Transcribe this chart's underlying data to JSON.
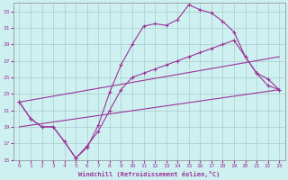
{
  "xlabel": "Windchill (Refroidissement éolien,°C)",
  "bg_color": "#cff0f0",
  "grid_color": "#aacccc",
  "line_color": "#993399",
  "xlim": [
    -0.5,
    23.5
  ],
  "ylim": [
    15,
    34
  ],
  "yticks": [
    15,
    17,
    19,
    21,
    23,
    25,
    27,
    29,
    31,
    33
  ],
  "xticks": [
    0,
    1,
    2,
    3,
    4,
    5,
    6,
    7,
    8,
    9,
    10,
    11,
    12,
    13,
    14,
    15,
    16,
    17,
    18,
    19,
    20,
    21,
    22,
    23
  ],
  "series": [
    {
      "x": [
        0,
        1,
        2,
        3,
        4,
        5,
        6,
        7,
        8,
        9,
        10,
        11,
        12,
        13,
        14,
        15,
        16,
        17,
        18,
        19,
        20,
        21,
        22,
        23
      ],
      "y": [
        22,
        20,
        19,
        19,
        17.2,
        15.2,
        16.5,
        19.2,
        23.2,
        26.5,
        29.0,
        31.2,
        31.5,
        31.3,
        32.0,
        33.8,
        33.2,
        32.8,
        31.8,
        30.5,
        27.5,
        25.5,
        24.0,
        23.5
      ]
    },
    {
      "x": [
        0,
        1,
        2,
        3,
        4,
        5,
        6,
        7,
        8,
        9,
        10,
        11,
        12,
        13,
        14,
        15,
        16,
        17,
        18,
        19,
        20,
        21,
        22,
        23
      ],
      "y": [
        22,
        20,
        19,
        19,
        17.2,
        15.2,
        16.7,
        18.5,
        21.0,
        23.5,
        25.0,
        25.5,
        26.0,
        26.5,
        27.0,
        27.5,
        28.0,
        28.5,
        29.0,
        29.5,
        27.5,
        25.5,
        24.8,
        23.5
      ]
    },
    {
      "x": [
        0,
        23
      ],
      "y": [
        19.0,
        23.5
      ]
    },
    {
      "x": [
        0,
        23
      ],
      "y": [
        22.0,
        27.5
      ]
    }
  ]
}
